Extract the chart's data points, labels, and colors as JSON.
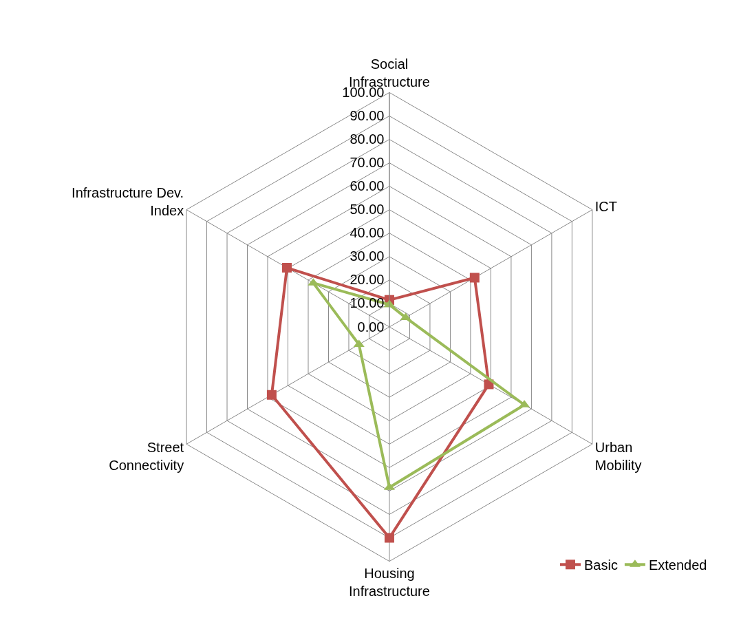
{
  "chart_data": {
    "type": "radar",
    "categories": [
      "Social Infrastructure",
      "ICT",
      "Urban Mobility",
      "Housing Infrastructure",
      "Street Connectivity",
      "Infrastructure Dev. Index"
    ],
    "series": [
      {
        "name": "Basic",
        "color": "#c0504d",
        "marker": "square",
        "values": [
          11.5,
          42,
          49,
          90,
          58,
          50.5
        ]
      },
      {
        "name": "Extended",
        "color": "#9bbb59",
        "marker": "triangle",
        "values": [
          9.5,
          8,
          66.5,
          68.5,
          15,
          37.5
        ]
      }
    ],
    "ylim": [
      0,
      100
    ],
    "yticks": [
      {
        "value": 0,
        "label": "0.00"
      },
      {
        "value": 10,
        "label": "10.00"
      },
      {
        "value": 20,
        "label": "20.00"
      },
      {
        "value": 30,
        "label": "30.00"
      },
      {
        "value": 40,
        "label": "40.00"
      },
      {
        "value": 50,
        "label": "50.00"
      },
      {
        "value": 60,
        "label": "60.00"
      },
      {
        "value": 70,
        "label": "70.00"
      },
      {
        "value": 80,
        "label": "80.00"
      },
      {
        "value": 90,
        "label": "90.00"
      },
      {
        "value": 100,
        "label": "100.00"
      }
    ],
    "grid": true,
    "legend": "bottom right"
  }
}
